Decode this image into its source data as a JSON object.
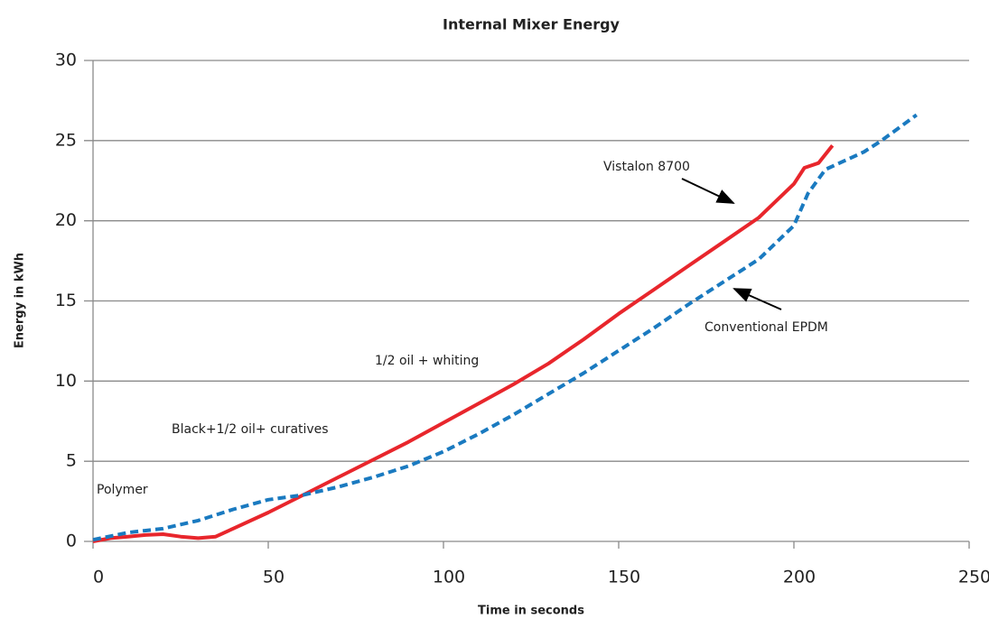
{
  "chart_data": {
    "type": "line",
    "title": "Internal Mixer Energy",
    "xlabel": "Time in seconds",
    "ylabel": "Energy in kWh",
    "xlim": [
      0,
      250
    ],
    "xticks": [
      0,
      50,
      100,
      150,
      200,
      250
    ],
    "ylim": [
      0,
      30
    ],
    "yticks": [
      0,
      5,
      10,
      15,
      20,
      25,
      30
    ],
    "grid": true,
    "series": [
      {
        "name": "Vistalon 8700",
        "color": "#e8262c",
        "dashed": false,
        "x": [
          0,
          5,
          10,
          15,
          20,
          25,
          30,
          35,
          40,
          50,
          60,
          70,
          80,
          90,
          100,
          110,
          120,
          130,
          140,
          150,
          160,
          170,
          180,
          190,
          200,
          203,
          207,
          211
        ],
        "values": [
          0,
          0.2,
          0.3,
          0.4,
          0.45,
          0.3,
          0.2,
          0.3,
          0.8,
          1.8,
          2.9,
          4,
          5.1,
          6.2,
          7.4,
          8.6,
          9.8,
          11.1,
          12.6,
          14.2,
          15.7,
          17.2,
          18.7,
          20.2,
          22.3,
          23.3,
          23.6,
          24.7
        ]
      },
      {
        "name": "Conventional EPDM",
        "color": "#1a7ac0",
        "dashed": true,
        "x": [
          0,
          10,
          20,
          30,
          40,
          50,
          60,
          70,
          80,
          90,
          100,
          110,
          120,
          130,
          140,
          150,
          160,
          170,
          180,
          190,
          200,
          204,
          209,
          215,
          220,
          225,
          230,
          235
        ],
        "values": [
          0.1,
          0.55,
          0.8,
          1.3,
          2,
          2.6,
          2.9,
          3.4,
          4,
          4.7,
          5.6,
          6.7,
          7.9,
          9.2,
          10.5,
          11.9,
          13.3,
          14.8,
          16.2,
          17.6,
          19.7,
          21.7,
          23.2,
          23.8,
          24.3,
          25,
          25.8,
          26.6
        ]
      }
    ],
    "annotations": [
      "1/2 oil + whiting",
      "Black+1/2 oil+ curatives",
      "Polymer"
    ]
  }
}
